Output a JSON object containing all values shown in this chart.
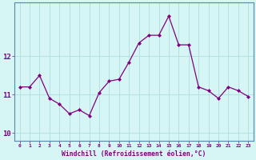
{
  "x": [
    0,
    1,
    2,
    3,
    4,
    5,
    6,
    7,
    8,
    9,
    10,
    11,
    12,
    13,
    14,
    15,
    16,
    17,
    18,
    19,
    20,
    21,
    22,
    23
  ],
  "y": [
    11.2,
    11.2,
    11.5,
    10.9,
    10.75,
    10.5,
    10.6,
    10.45,
    11.05,
    11.35,
    11.4,
    11.85,
    12.35,
    12.55,
    12.55,
    13.05,
    12.3,
    12.3,
    11.2,
    11.1,
    10.9,
    11.2,
    11.1,
    10.95
  ],
  "line_color": "#800080",
  "marker": "D",
  "marker_size": 2,
  "bg_color": "#d6f5f5",
  "grid_color": "#b0dede",
  "xlabel": "Windchill (Refroidissement éolien,°C)",
  "xlabel_color": "#800080",
  "tick_color": "#800080",
  "ylim": [
    9.8,
    13.4
  ],
  "xlim": [
    -0.5,
    23.5
  ],
  "yticks": [
    10,
    11,
    12
  ],
  "xticks": [
    0,
    1,
    2,
    3,
    4,
    5,
    6,
    7,
    8,
    9,
    10,
    11,
    12,
    13,
    14,
    15,
    16,
    17,
    18,
    19,
    20,
    21,
    22,
    23
  ],
  "border_color": "#5588aa"
}
